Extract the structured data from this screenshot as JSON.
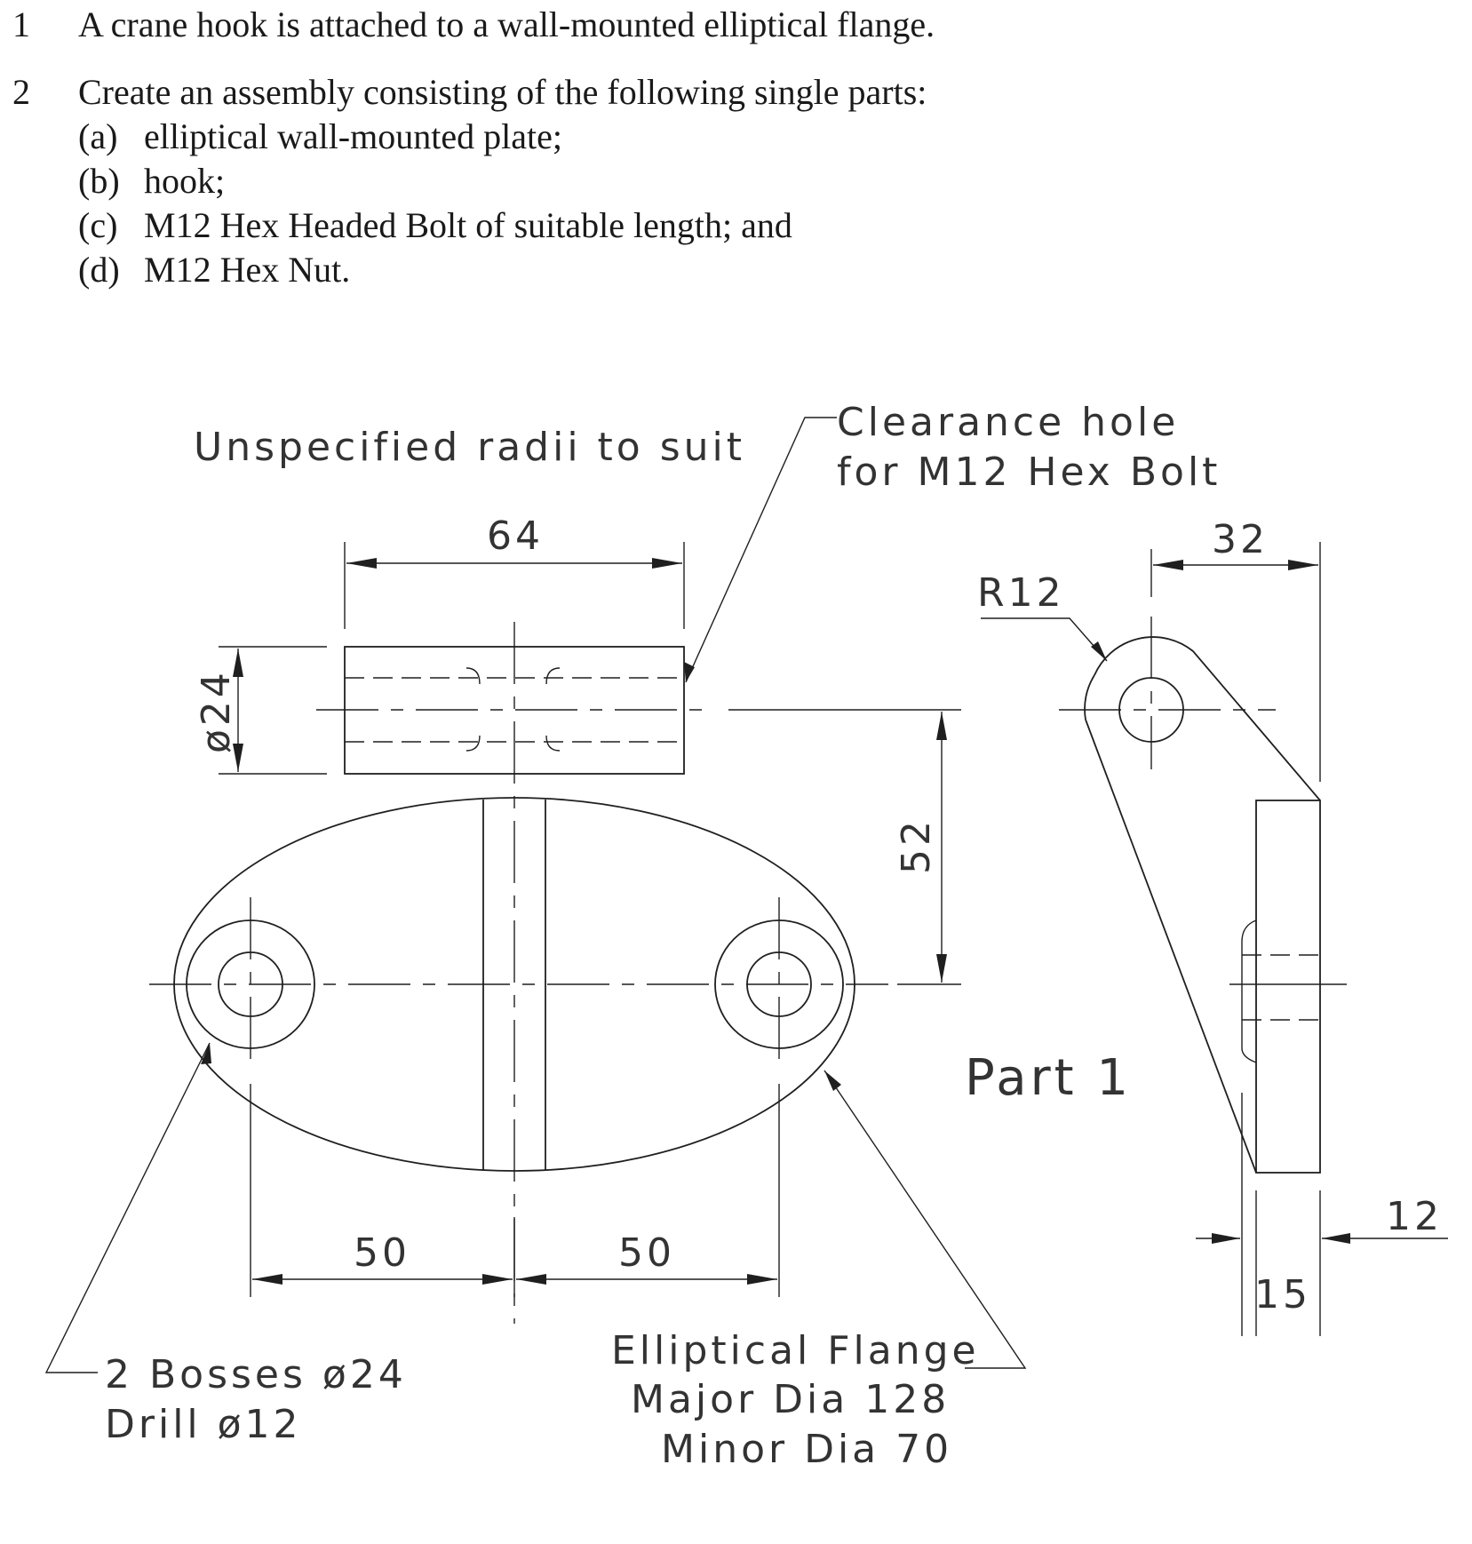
{
  "instructions": {
    "item1": {
      "number": "1",
      "text": "A crane hook is attached to a wall-mounted elliptical flange."
    },
    "item2": {
      "number": "2",
      "text": "Create an assembly consisting of the following single parts:",
      "subitems": [
        {
          "label": "(a)",
          "text": "elliptical wall-mounted plate;"
        },
        {
          "label": "(b)",
          "text": "hook;"
        },
        {
          "label": "(c)",
          "text": "M12 Hex Headed Bolt of suitable length; and"
        },
        {
          "label": "(d)",
          "text": "M12 Hex Nut."
        }
      ]
    }
  },
  "drawing": {
    "note_radii": "Unspecified radii to suit",
    "clearance_line1": "Clearance hole",
    "clearance_line2": "for M12 Hex Bolt",
    "dim_64": "64",
    "dim_dia24": "ø24",
    "dim_52": "52",
    "dim_50_left": "50",
    "dim_50_right": "50",
    "dim_32": "32",
    "dim_r12": "R12",
    "dim_12": "12",
    "dim_15": "15",
    "part_label": "Part 1",
    "bosses_line1": "2 Bosses ø24",
    "bosses_line2": "Drill ø12",
    "flange_line1": "Elliptical Flange",
    "flange_line2": "Major Dia 128",
    "flange_line3": "Minor Dia 70"
  }
}
